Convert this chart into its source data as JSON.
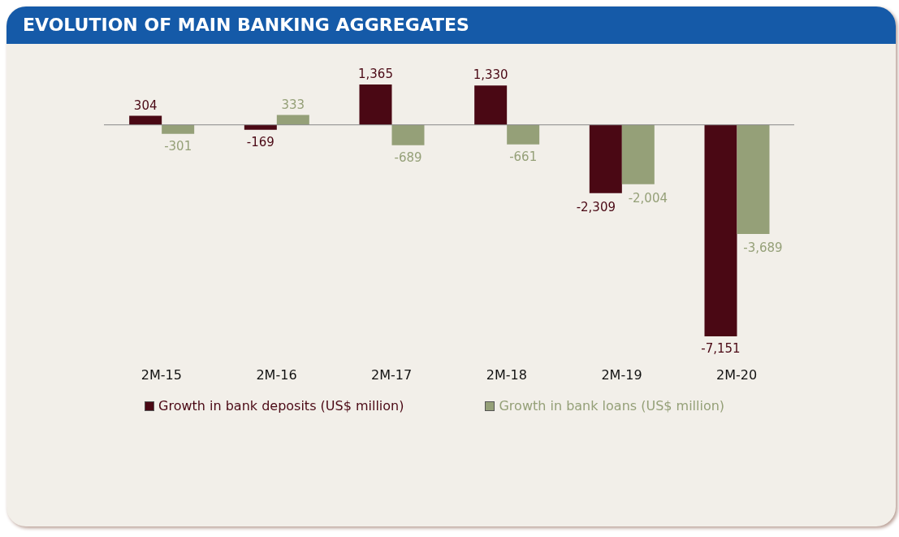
{
  "chart_data": {
    "type": "bar",
    "title": "EVOLUTION OF MAIN BANKING AGGREGATES",
    "categories": [
      "2M-15",
      "2M-16",
      "2M-17",
      "2M-18",
      "2M-19",
      "2M-20"
    ],
    "series": [
      {
        "name": "Growth in bank deposits (US$ million)",
        "color": "#4a0814",
        "values": [
          304,
          -169,
          1365,
          1330,
          -2309,
          -7151
        ],
        "value_labels": [
          "304",
          "-169",
          "1,365",
          "1,330",
          "-2,309",
          "-7,151"
        ]
      },
      {
        "name": "Growth in bank loans (US$ million)",
        "color": "#95a078",
        "values": [
          -301,
          333,
          -689,
          -661,
          -2004,
          -3689
        ],
        "value_labels": [
          "-301",
          "333",
          "-689",
          "-661",
          "-2,004",
          "-3,689"
        ]
      }
    ],
    "legend": "bottom",
    "grid": false
  }
}
